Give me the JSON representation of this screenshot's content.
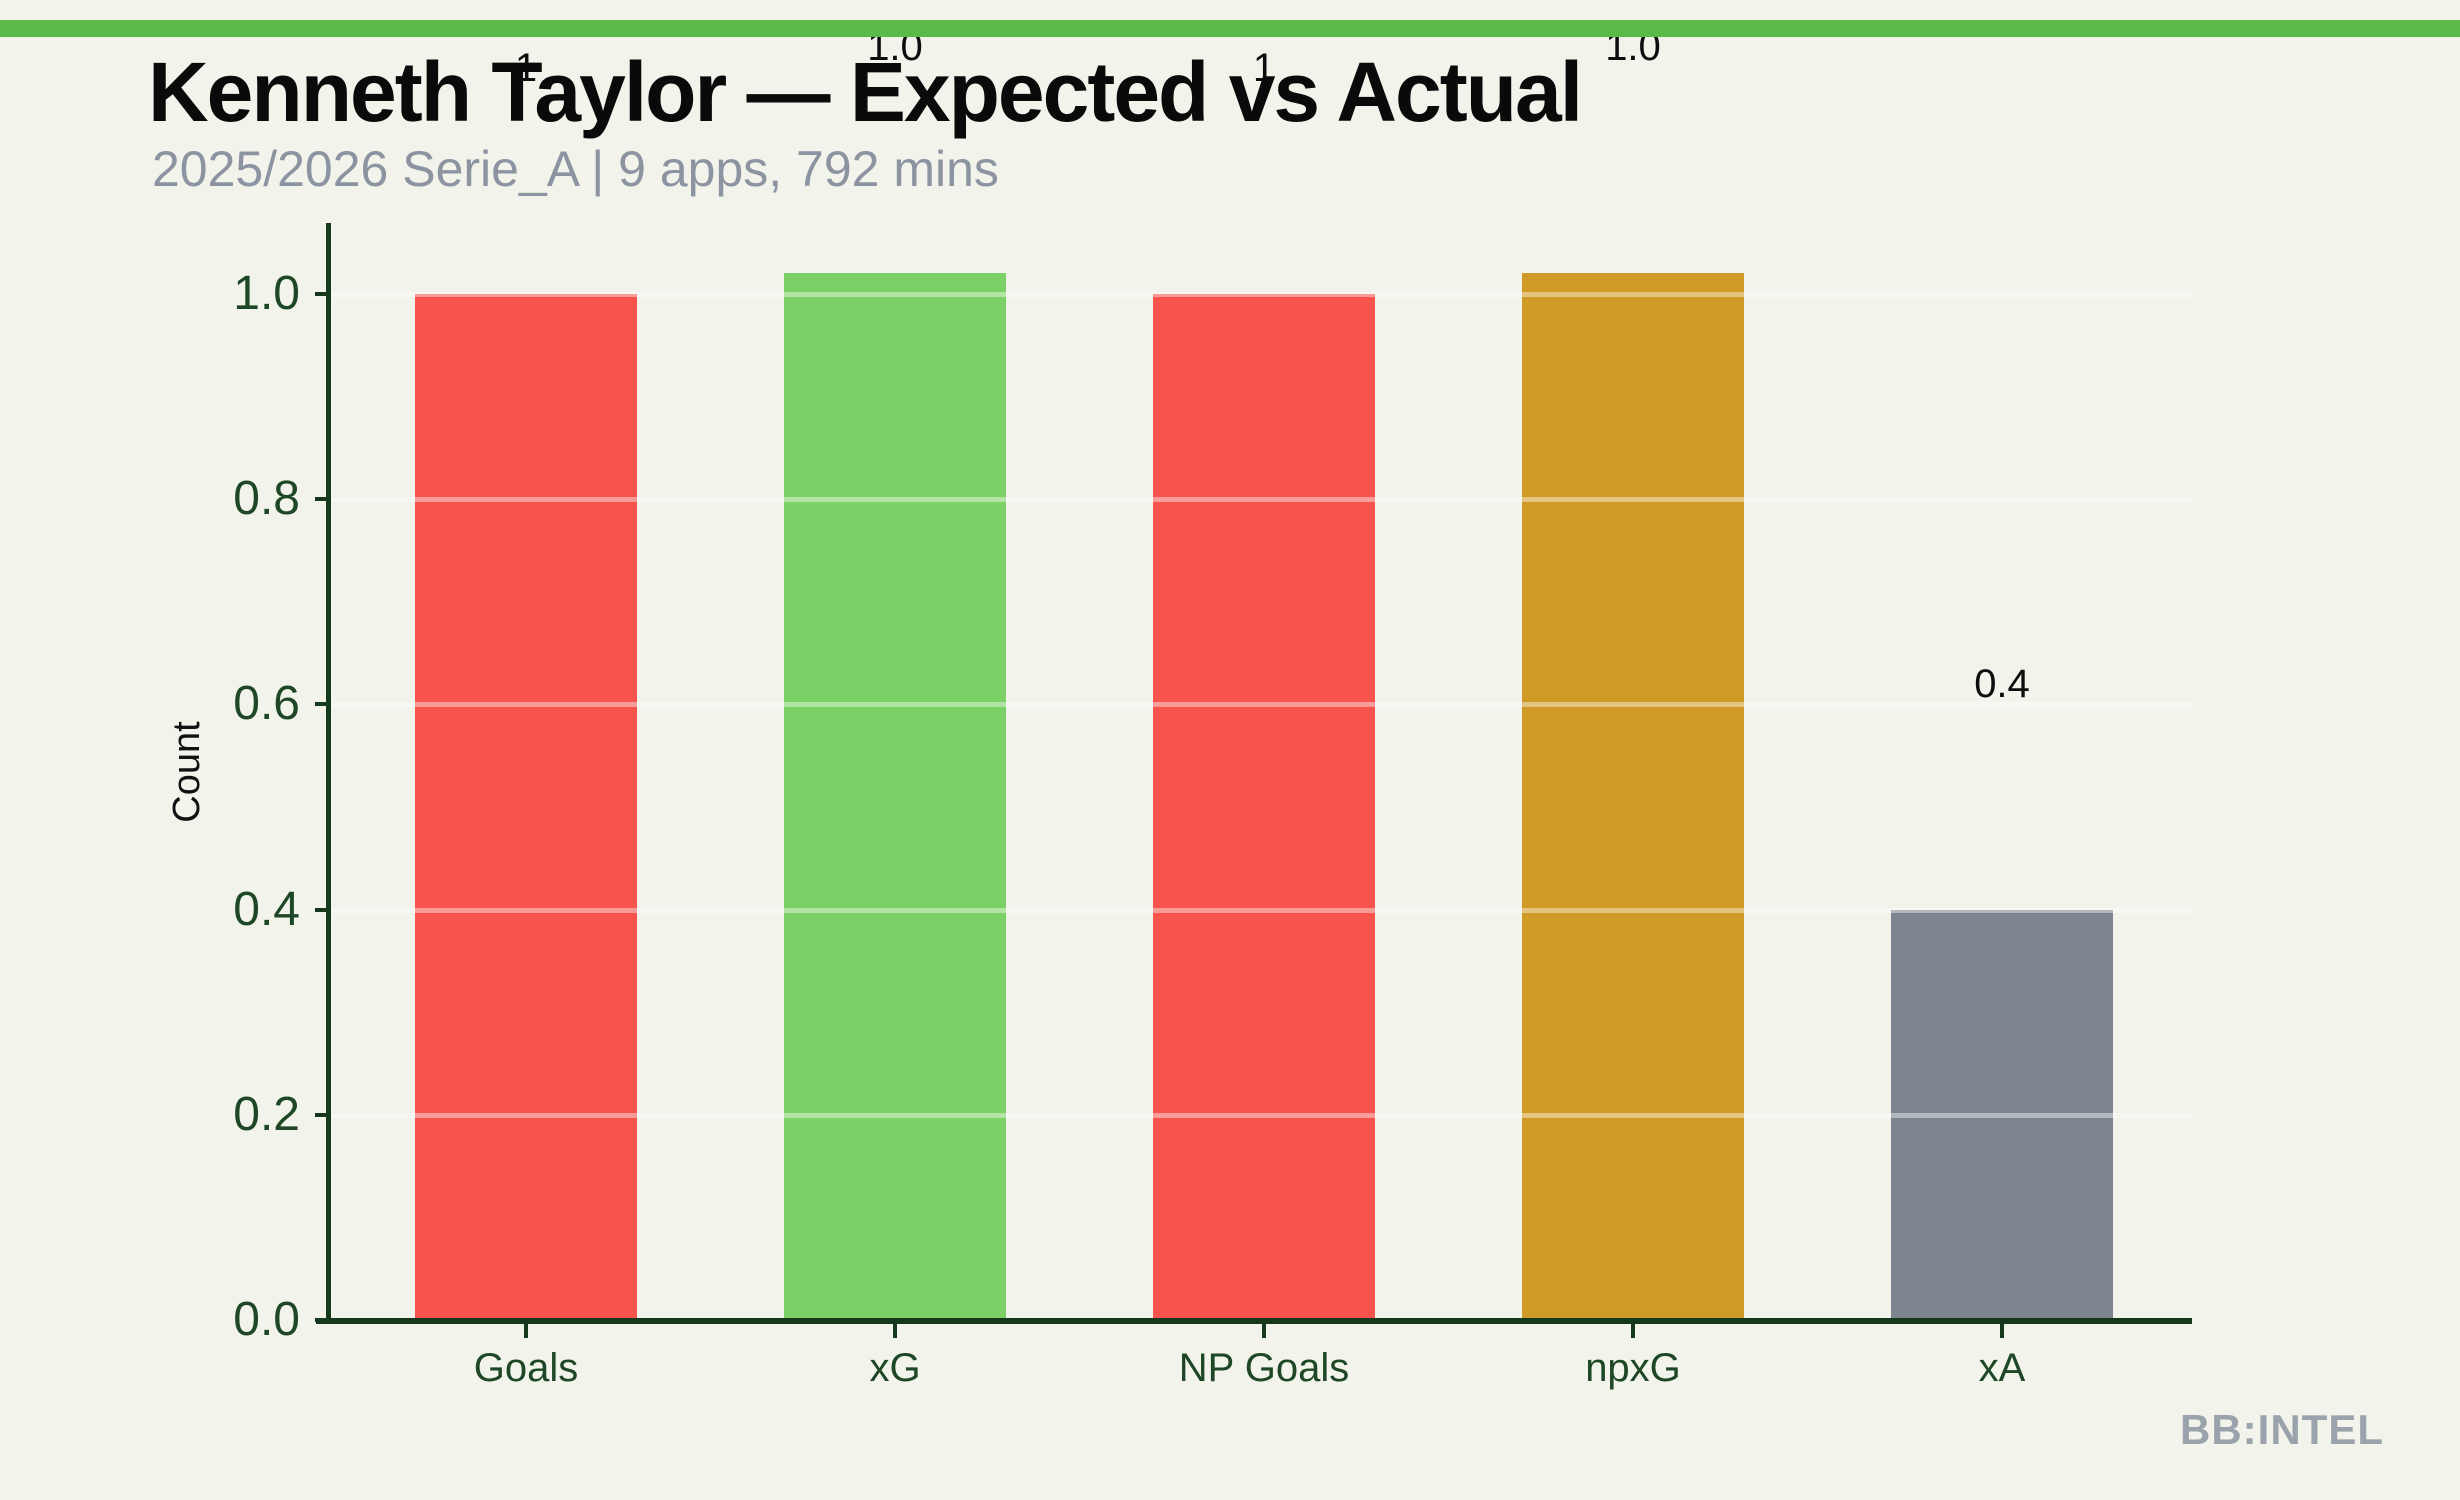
{
  "header": {
    "title": "Kenneth Taylor — Expected vs Actual",
    "subtitle": "2025/2026 Serie_A | 9 apps, 792 mins"
  },
  "footer": {
    "watermark": "BB:INTEL"
  },
  "colors": {
    "background": "#f2f3ea",
    "accent_strip": "#5ab948",
    "axis": "#16391d",
    "tick_text": "#1d4726",
    "title_text": "#0a0a0a",
    "subtitle_text": "#8c94a2",
    "watermark_text": "#9aa2ac",
    "gridline": "rgba(255,255,255,0.42)"
  },
  "chart_data": {
    "type": "bar",
    "title": "Kenneth Taylor — Expected vs Actual",
    "subtitle": "2025/2026 Serie_A | 9 apps, 792 mins",
    "categories": [
      "Goals",
      "xG",
      "NP Goals",
      "npxG",
      "xA"
    ],
    "values": [
      1.0,
      1.02,
      1.0,
      1.02,
      0.4
    ],
    "bar_labels": [
      "1",
      "1.0",
      "1",
      "1.0",
      "0.4"
    ],
    "bar_colors": [
      "#f8544e",
      "#7bd166",
      "#f8544e",
      "#d09a26",
      "#7d8591"
    ],
    "bar_names": [
      "bar-goals",
      "bar-xg",
      "bar-np-goals",
      "bar-npxg",
      "bar-xa"
    ],
    "xlabel": "",
    "ylabel": "Count",
    "ylim": [
      0,
      1.07
    ],
    "yticks": [
      {
        "v": 0.0,
        "label": "0.0"
      },
      {
        "v": 0.2,
        "label": "0.2"
      },
      {
        "v": 0.4,
        "label": "0.4"
      },
      {
        "v": 0.6,
        "label": "0.6"
      },
      {
        "v": 0.8,
        "label": "0.8"
      },
      {
        "v": 1.0,
        "label": "1.0"
      }
    ],
    "grid": "horizontal white lines drawn over bars",
    "legend": "none"
  }
}
